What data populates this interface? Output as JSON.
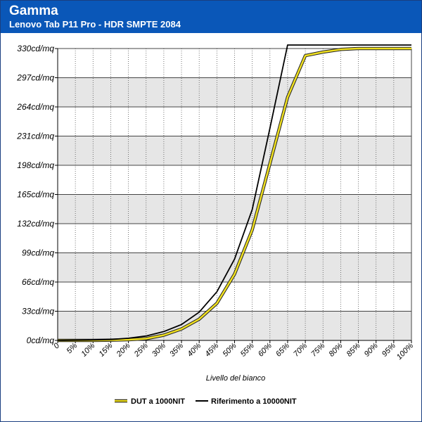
{
  "header": {
    "title": "Gamma",
    "subtitle": "Lenovo Tab P11 Pro - HDR SMPTE 2084"
  },
  "colors": {
    "header_bg": "#0a57b8",
    "band": "#e6e6e6",
    "dut_series": "#f0e020",
    "reference_series": "#000000"
  },
  "chart_data": {
    "type": "line",
    "xlabel": "Livello del bianco",
    "ylabel": "",
    "x": [
      "0",
      "5%",
      "10%",
      "15%",
      "20%",
      "25%",
      "30%",
      "35%",
      "40%",
      "45%",
      "50%",
      "55%",
      "60%",
      "65%",
      "70%",
      "75%",
      "80%",
      "85%",
      "90%",
      "95%",
      "100%"
    ],
    "y_ticks": [
      "0cd/mq",
      "33cd/mq",
      "66cd/mq",
      "99cd/mq",
      "132cd/mq",
      "165cd/mq",
      "198cd/mq",
      "231cd/mq",
      "264cd/mq",
      "297cd/mq",
      "330cd/mq"
    ],
    "ylim": [
      0,
      330
    ],
    "grid": true,
    "legend_position": "bottom",
    "series": [
      {
        "name": "DUT a 1000NIT",
        "values": [
          0,
          0,
          0,
          0.3,
          0.8,
          2,
          6,
          13,
          24,
          42,
          75,
          125,
          200,
          275,
          322,
          326,
          329,
          330,
          330,
          330,
          330
        ]
      },
      {
        "name": "Riferimento a 10000NIT",
        "values": [
          0,
          0.2,
          0.5,
          1,
          2.5,
          5,
          10,
          18,
          32,
          55,
          92,
          148,
          240,
          334,
          334,
          334,
          334,
          334,
          334,
          334,
          334
        ]
      }
    ]
  }
}
